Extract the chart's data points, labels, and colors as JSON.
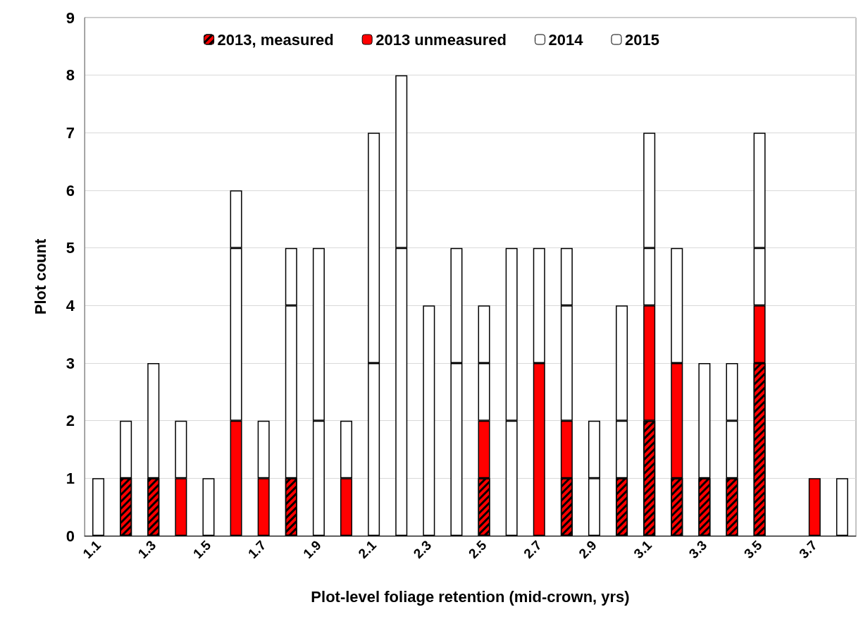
{
  "chart_data": {
    "type": "bar",
    "stacked": true,
    "xlabel": "Plot-level foliage retention (mid-crown, yrs)",
    "ylabel": "Plot count",
    "categories": [
      "1.1",
      null,
      "1.3",
      null,
      "1.5",
      null,
      "1.7",
      null,
      "1.9",
      null,
      "2.1",
      null,
      "2.3",
      null,
      "2.5",
      null,
      "2.7",
      null,
      "2.9",
      null,
      "3.1",
      null,
      "3.3",
      null,
      "3.5",
      null,
      "3.7",
      null
    ],
    "series": [
      {
        "name": "2013, measured",
        "color": "#ff0000",
        "values": [
          0,
          1,
          1,
          0,
          0,
          0,
          0,
          1,
          0,
          0,
          0,
          0,
          0,
          0,
          1,
          0,
          0,
          1,
          0,
          1,
          2,
          1,
          1,
          1,
          3,
          0,
          0,
          0
        ]
      },
      {
        "name": "2013 unmeasured",
        "color": "#ff0000",
        "values": [
          0,
          0,
          0,
          1,
          0,
          2,
          1,
          0,
          0,
          1,
          0,
          0,
          0,
          0,
          1,
          0,
          3,
          1,
          0,
          0,
          2,
          2,
          0,
          0,
          1,
          0,
          1,
          0
        ]
      },
      {
        "name": "2014",
        "color": "#ffffff",
        "values": [
          1,
          1,
          2,
          1,
          1,
          3,
          1,
          3,
          2,
          1,
          3,
          5,
          4,
          3,
          1,
          2,
          2,
          2,
          1,
          1,
          1,
          2,
          2,
          1,
          1,
          0,
          0,
          1
        ]
      },
      {
        "name": "2015",
        "color": "#ffffff",
        "values": [
          0,
          0,
          0,
          0,
          0,
          1,
          0,
          1,
          3,
          0,
          4,
          3,
          0,
          2,
          1,
          3,
          0,
          1,
          1,
          2,
          2,
          0,
          0,
          1,
          2,
          0,
          0,
          0
        ]
      }
    ],
    "ylim": [
      0,
      9
    ],
    "yticks": [
      0,
      1,
      2,
      3,
      4,
      5,
      6,
      7,
      8,
      9
    ],
    "grid": "y",
    "legend": "top"
  }
}
